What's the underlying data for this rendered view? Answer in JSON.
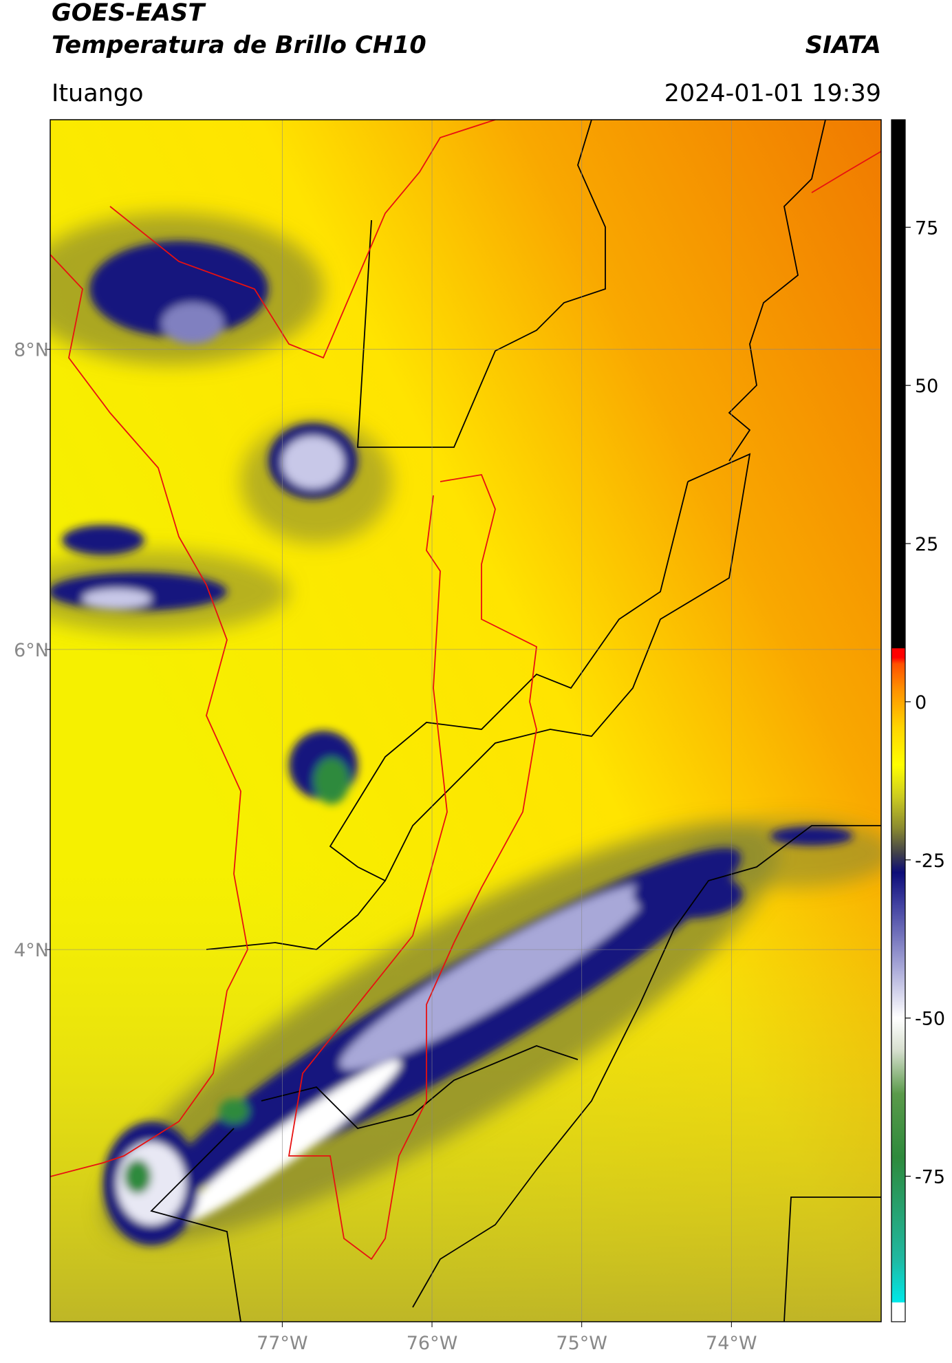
{
  "header": {
    "satellite": "GOES-EAST",
    "product": "Temperatura de Brillo CH10",
    "agency": "SIATA",
    "location": "Ituango",
    "datetime": "2024-01-01 19:39"
  },
  "map": {
    "xlim": [
      -78.55,
      -73.0
    ],
    "ylim": [
      1.52,
      9.53
    ],
    "xticks": [
      {
        "value": -77,
        "label": "77°W"
      },
      {
        "value": -76,
        "label": "76°W"
      },
      {
        "value": -75,
        "label": "75°W"
      },
      {
        "value": -74,
        "label": "74°W"
      }
    ],
    "yticks": [
      {
        "value": 4,
        "label": "4°N"
      },
      {
        "value": 6,
        "label": "6°N"
      },
      {
        "value": 8,
        "label": "8°N"
      }
    ],
    "grid": true
  },
  "colorbar": {
    "lim": [
      -98,
      92
    ],
    "ticks": [
      -75,
      -50,
      -25,
      0,
      25,
      50,
      75
    ],
    "colormap": [
      {
        "value": -98,
        "color": "#ffffff"
      },
      {
        "value": -95,
        "color": "#ffffff"
      },
      {
        "value": -94.9,
        "color": "#00e8e8"
      },
      {
        "value": -88,
        "color": "#20b8a0"
      },
      {
        "value": -72,
        "color": "#2e8a3c"
      },
      {
        "value": -62,
        "color": "#5a9a4a"
      },
      {
        "value": -55,
        "color": "#d8e0d0"
      },
      {
        "value": -50,
        "color": "#ffffff"
      },
      {
        "value": -42,
        "color": "#a8a8d8"
      },
      {
        "value": -32,
        "color": "#4040a0"
      },
      {
        "value": -27,
        "color": "#0c0c78"
      },
      {
        "value": -24,
        "color": "#40404a"
      },
      {
        "value": -20,
        "color": "#8a8a30"
      },
      {
        "value": -15,
        "color": "#cccc20"
      },
      {
        "value": -10,
        "color": "#ffff00"
      },
      {
        "value": -4,
        "color": "#ffd400"
      },
      {
        "value": 2,
        "color": "#ff9000"
      },
      {
        "value": 6,
        "color": "#ff5000"
      },
      {
        "value": 7,
        "color": "#ff0000"
      },
      {
        "value": 8.4,
        "color": "#ff0000"
      },
      {
        "value": 8.5,
        "color": "#000000"
      },
      {
        "value": 92,
        "color": "#000000"
      }
    ]
  }
}
